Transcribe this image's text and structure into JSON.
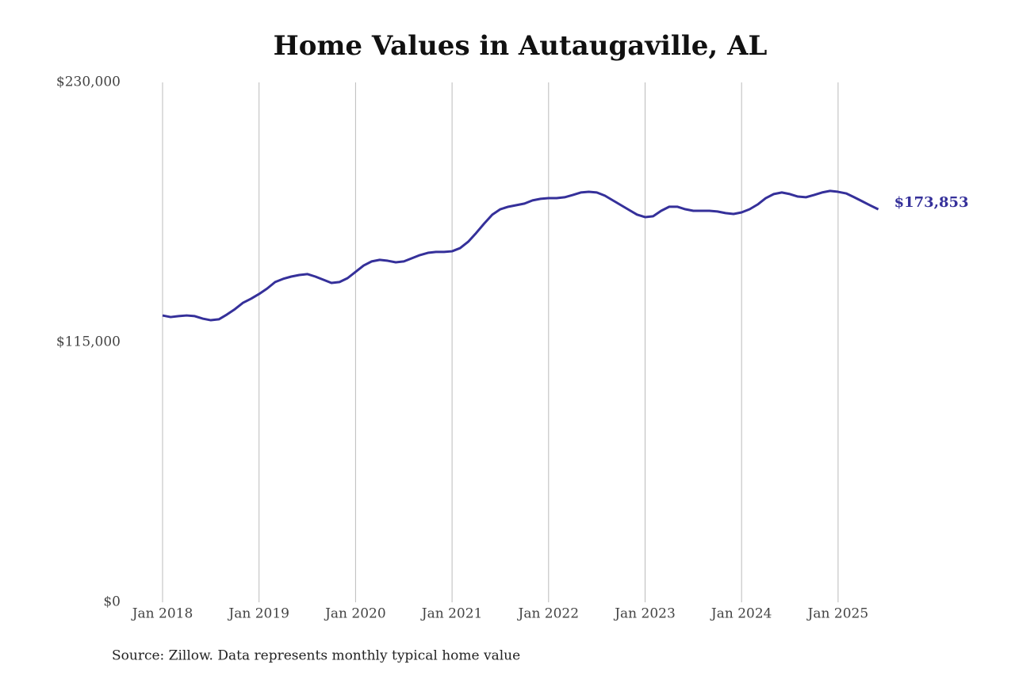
{
  "chart_data": {
    "type": "line",
    "title": "Home Values in Autaugaville, AL",
    "source": "Source: Zillow. Data represents monthly typical home value",
    "x": [
      "2018-01",
      "2018-02",
      "2018-03",
      "2018-04",
      "2018-05",
      "2018-06",
      "2018-07",
      "2018-08",
      "2018-09",
      "2018-10",
      "2018-11",
      "2018-12",
      "2019-01",
      "2019-02",
      "2019-03",
      "2019-04",
      "2019-05",
      "2019-06",
      "2019-07",
      "2019-08",
      "2019-09",
      "2019-10",
      "2019-11",
      "2019-12",
      "2020-01",
      "2020-02",
      "2020-03",
      "2020-04",
      "2020-05",
      "2020-06",
      "2020-07",
      "2020-08",
      "2020-09",
      "2020-10",
      "2020-11",
      "2020-12",
      "2021-01",
      "2021-02",
      "2021-03",
      "2021-04",
      "2021-05",
      "2021-06",
      "2021-07",
      "2021-08",
      "2021-09",
      "2021-10",
      "2021-11",
      "2021-12",
      "2022-01",
      "2022-02",
      "2022-03",
      "2022-04",
      "2022-05",
      "2022-06",
      "2022-07",
      "2022-08",
      "2022-09",
      "2022-10",
      "2022-11",
      "2022-12",
      "2023-01",
      "2023-02",
      "2023-03",
      "2023-04",
      "2023-05",
      "2023-06",
      "2023-07",
      "2023-08",
      "2023-09",
      "2023-10",
      "2023-11",
      "2023-12",
      "2024-01",
      "2024-02",
      "2024-03",
      "2024-04",
      "2024-05",
      "2024-06",
      "2024-07",
      "2024-08",
      "2024-09",
      "2024-10",
      "2024-11",
      "2024-12",
      "2025-01",
      "2025-02",
      "2025-03",
      "2025-04",
      "2025-05",
      "2025-06"
    ],
    "series": [
      {
        "name": "Autaugaville, AL",
        "color": "#35309a",
        "values": [
          126900,
          126200,
          126600,
          126900,
          126600,
          125500,
          124800,
          125200,
          127300,
          129700,
          132500,
          134300,
          136400,
          138800,
          141700,
          143100,
          144100,
          144800,
          145200,
          144100,
          142700,
          141300,
          141700,
          143400,
          146200,
          149000,
          150800,
          151500,
          151100,
          150400,
          150800,
          152200,
          153600,
          154600,
          155000,
          155000,
          155300,
          156700,
          159500,
          163400,
          167600,
          171500,
          173900,
          175000,
          175700,
          176400,
          177800,
          178500,
          178800,
          178800,
          179200,
          180200,
          181300,
          181600,
          181300,
          179900,
          177800,
          175700,
          173600,
          171500,
          170400,
          170800,
          173200,
          175000,
          175000,
          173900,
          173200,
          173200,
          173200,
          172900,
          172200,
          171800,
          172500,
          173900,
          176000,
          178800,
          180600,
          181300,
          180600,
          179500,
          179200,
          180200,
          181300,
          182000,
          181600,
          180900,
          179200,
          177400,
          175600,
          173853
        ],
        "value_labels": [
          null,
          null,
          null,
          null,
          null,
          null,
          null,
          null,
          null,
          null,
          null,
          null,
          null,
          null,
          null,
          null,
          null,
          null,
          null,
          null,
          null,
          null,
          null,
          null,
          null,
          null,
          null,
          null,
          null,
          null,
          null,
          null,
          null,
          null,
          null,
          null,
          null,
          null,
          null,
          null,
          null,
          null,
          null,
          null,
          null,
          null,
          null,
          null,
          null,
          null,
          null,
          null,
          null,
          null,
          null,
          null,
          null,
          null,
          null,
          null,
          null,
          null,
          null,
          null,
          null,
          null,
          null,
          null,
          null,
          null,
          null,
          null,
          null,
          null,
          null,
          null,
          null,
          null,
          null,
          null,
          null,
          null,
          null,
          null,
          null,
          null,
          null,
          null,
          null,
          "$173,853"
        ]
      }
    ],
    "xticks": [
      {
        "value": "2018-01",
        "label": "Jan 2018"
      },
      {
        "value": "2019-01",
        "label": "Jan 2019"
      },
      {
        "value": "2020-01",
        "label": "Jan 2020"
      },
      {
        "value": "2021-01",
        "label": "Jan 2021"
      },
      {
        "value": "2022-01",
        "label": "Jan 2022"
      },
      {
        "value": "2023-01",
        "label": "Jan 2023"
      },
      {
        "value": "2024-01",
        "label": "Jan 2024"
      },
      {
        "value": "2025-01",
        "label": "Jan 2025"
      }
    ],
    "ylim": [
      0,
      230000
    ],
    "yticks": [
      {
        "value": 0,
        "label": "$0"
      },
      {
        "value": 115000,
        "label": "$115,000"
      },
      {
        "value": 230000,
        "label": "$230,000"
      }
    ],
    "grid": "x"
  }
}
